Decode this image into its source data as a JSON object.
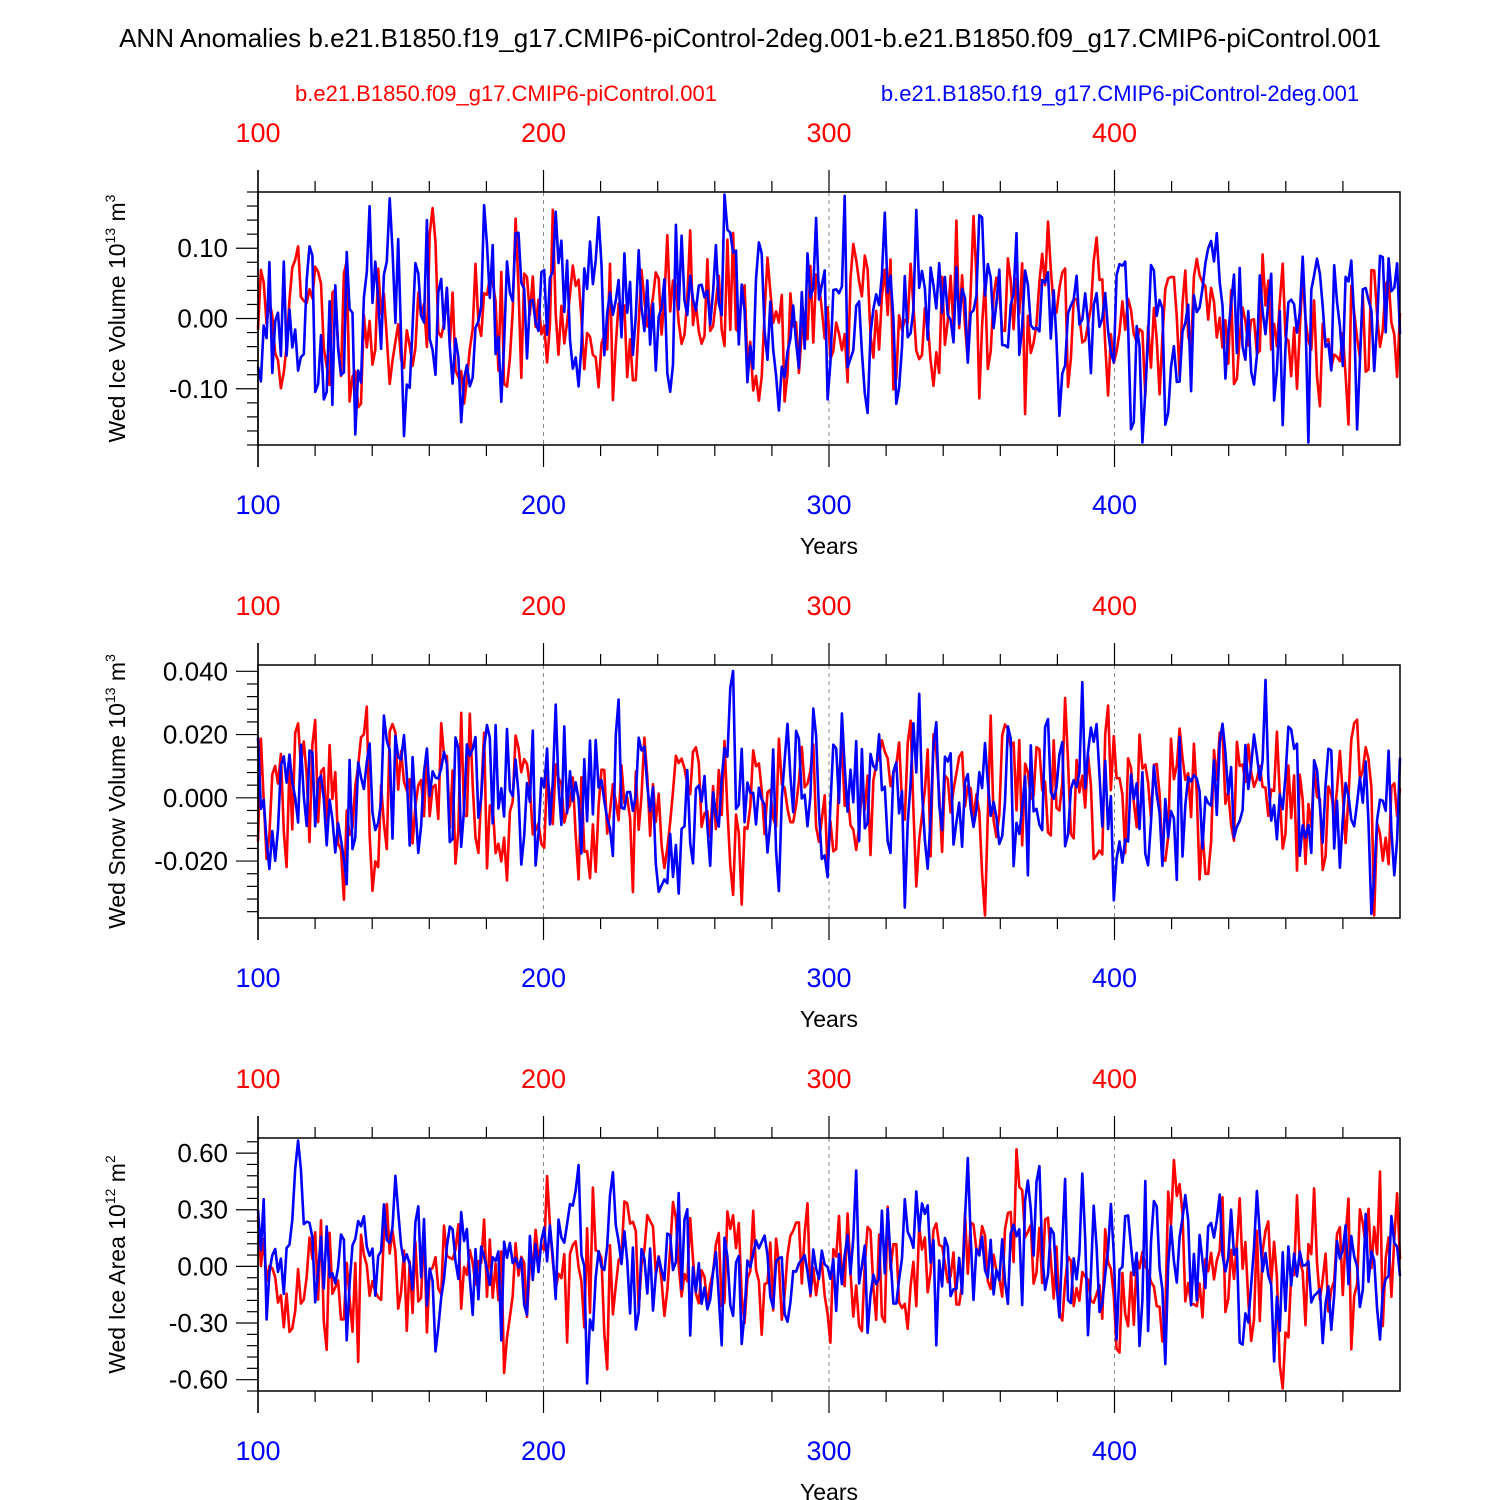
{
  "title": "ANN Anomalies b.e21.B1850.f19_g17.CMIP6-piControl-2deg.001-b.e21.B1850.f09_g17.CMIP6-piControl.001",
  "legend": {
    "red_label": "b.e21.B1850.f09_g17.CMIP6-piControl.001",
    "blue_label": "b.e21.B1850.f19_g17.CMIP6-piControl-2deg.001"
  },
  "colors": {
    "red": "#ff0000",
    "blue": "#0000ff",
    "axis": "#000000",
    "grid": "#888888"
  },
  "chart_data": [
    {
      "type": "line",
      "ylabel": "Wed Ice Volume 10",
      "ylabel_exp": "13",
      "ylabel_unit": " m",
      "ylabel_unit_exp": "3",
      "xlabel": "Years",
      "xlim": [
        100,
        500
      ],
      "ylim": [
        -0.18,
        0.18
      ],
      "yticks": [
        -0.1,
        0.0,
        0.1
      ],
      "ytick_labels": [
        "-0.10",
        "0.00",
        "0.10"
      ],
      "xticks": [
        100,
        200,
        300,
        400
      ],
      "xtick_labels": [
        "100",
        "200",
        "300",
        "400"
      ],
      "top_xtick_labels": [
        "100",
        "200",
        "300",
        "400"
      ],
      "ref_lines": [
        200,
        300,
        400
      ],
      "series": [
        {
          "name": "b.e21.B1850.f09_g17.CMIP6-piControl.001",
          "color": "red",
          "amp": 0.058,
          "seed": 11,
          "values": []
        },
        {
          "name": "b.e21.B1850.f19_g17.CMIP6-piControl-2deg.001",
          "color": "blue",
          "amp": 0.062,
          "seed": 23,
          "values": []
        }
      ]
    },
    {
      "type": "line",
      "ylabel": "Wed Snow Volume 10",
      "ylabel_exp": "13",
      "ylabel_unit": " m",
      "ylabel_unit_exp": "3",
      "xlabel": "Years",
      "xlim": [
        100,
        500
      ],
      "ylim": [
        -0.038,
        0.042
      ],
      "yticks": [
        -0.02,
        0.0,
        0.02,
        0.04
      ],
      "ytick_labels": [
        "-0.020",
        "0.000",
        "0.020",
        "0.040"
      ],
      "xticks": [
        100,
        200,
        300,
        400
      ],
      "xtick_labels": [
        "100",
        "200",
        "300",
        "400"
      ],
      "top_xtick_labels": [
        "100",
        "200",
        "300",
        "400"
      ],
      "ref_lines": [
        200,
        300,
        400
      ],
      "series": [
        {
          "name": "b.e21.B1850.f09_g17.CMIP6-piControl.001",
          "color": "red",
          "amp": 0.0125,
          "seed": 37,
          "values": []
        },
        {
          "name": "b.e21.B1850.f19_g17.CMIP6-piControl-2deg.001",
          "color": "blue",
          "amp": 0.014,
          "seed": 51,
          "values": []
        }
      ]
    },
    {
      "type": "line",
      "ylabel": "Wed Ice Area 10",
      "ylabel_exp": "12",
      "ylabel_unit": " m",
      "ylabel_unit_exp": "2",
      "xlabel": "Years",
      "xlim": [
        100,
        500
      ],
      "ylim": [
        -0.66,
        0.68
      ],
      "yticks": [
        -0.6,
        -0.3,
        0.0,
        0.3,
        0.6
      ],
      "ytick_labels": [
        "-0.60",
        "-0.30",
        "0.00",
        "0.30",
        "0.60"
      ],
      "xticks": [
        100,
        200,
        300,
        400
      ],
      "xtick_labels": [
        "100",
        "200",
        "300",
        "400"
      ],
      "top_xtick_labels": [
        "100",
        "200",
        "300",
        "400"
      ],
      "ref_lines": [
        200,
        300,
        400
      ],
      "series": [
        {
          "name": "b.e21.B1850.f09_g17.CMIP6-piControl.001",
          "color": "red",
          "amp": 0.2,
          "seed": 73,
          "values": []
        },
        {
          "name": "b.e21.B1850.f19_g17.CMIP6-piControl-2deg.001",
          "color": "blue",
          "amp": 0.21,
          "seed": 97,
          "values": []
        }
      ]
    }
  ]
}
